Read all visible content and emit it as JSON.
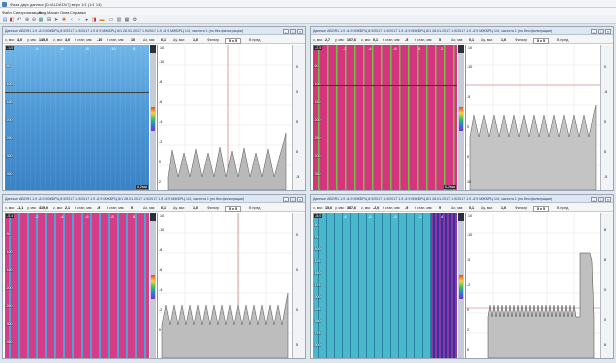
{
  "window": {
    "title": "Фаза двух данных  [D:/ALDATA/?]  верх 1/1 (1/1 14)"
  },
  "menu": [
    "Файл",
    "Синхронизация",
    "Вид",
    "Маски",
    "Окна",
    "Справка"
  ],
  "toolbar_icons": [
    "folder-icon",
    "save-icon",
    "undo-icon",
    "zoom-in-icon",
    "zoom-out-icon",
    "grid-icon",
    "ruler-icon",
    "cursor-icon",
    "marker-icon",
    "arrow-left-icon",
    "arrow-right-icon",
    "play-icon",
    "stop-icon",
    "palette-icon",
    "layout-1-icon",
    "layout-2-icon",
    "layout-4-icon",
    "settings-icon"
  ],
  "panels": [
    {
      "id": "tl",
      "title": "Данные ABOR1 1.9 -8-9 МЖБРЦ 8.9/2017 1.9/2017 1.9 8 9 МЖБРЦ 8/1 28.01.2017 1.9/2017 1.9 -8 9 МЖБРЦ 1/4, частота 1 (по без фильтрации)",
      "params": {
        "x_label": "x, мм:",
        "x": "4,0",
        "y_label": "y, мм:",
        "y": "145,0",
        "z_label": "z, мм:",
        "z": "4,0",
        "amp_label": "t стан, мм:",
        "amp": "-10",
        "tamp_label": "t стан, мм:",
        "tamp": "10",
        "dx_label": "Δx, мм:",
        "dx": "0,1",
        "dy_label": "Δy, мм:",
        "dy": "1,0",
        "filter_label": "Фильтр",
        "filter": "5 х 5",
        "sq_label": "В пред"
      },
      "image_labels": [
        "50",
        "100",
        "150",
        "200",
        "250",
        "300",
        "350",
        "400"
      ],
      "plot_y_labels": [
        "10",
        "-10",
        "-8",
        "-6",
        "-4",
        "-2",
        "0",
        "2"
      ],
      "right_labels": [
        "0",
        "0",
        "5",
        "5",
        "-5"
      ],
      "corner_tl": "-1,5",
      "corner_br": "6,2мм",
      "top_marks": [
        "-4",
        "-6",
        "-8",
        "-10",
        "8"
      ]
    },
    {
      "id": "tr",
      "title": "Данные ABOR1 1.9 -8-9 МЖБРЦ 8.9/2017 1.9/2017 1.9 -8 9 МЖБРЦ 8/1 28.01.2017 1.9/2017 1.9 -8 9 МЖБРЦ 1/4, частота 1 (по без фильтрации)",
      "params": {
        "x_label": "x, мм:",
        "x": "2,7",
        "y_label": "y, мм:",
        "y": "107,6",
        "z_label": "z, мм:",
        "z": "0,1",
        "amp_label": "t стан, мм:",
        "amp": "-5",
        "tamp_label": "t стан, мм:",
        "tamp": "5",
        "dx_label": "Δx, мм:",
        "dx": "0,1",
        "dy_label": "Δy, мм:",
        "dy": "1,0",
        "filter_label": "Фильтр",
        "filter": "5 х 5",
        "sq_label": "В пред"
      },
      "image_labels": [
        "50",
        "100",
        "150",
        "200",
        "250",
        "300",
        "350",
        "400"
      ],
      "plot_y_labels": [
        "10",
        "-10",
        "-5",
        "0",
        "5",
        "10"
      ],
      "right_labels": [
        "0",
        "-5",
        "5",
        "5",
        "-5"
      ],
      "corner_tl": "-2,5",
      "corner_br": "6,2мм",
      "top_marks": [
        "-2",
        "-4",
        "-6",
        "0",
        "2"
      ]
    },
    {
      "id": "bl",
      "title": "Данные ABOR1 1.9 -8-9 МЖБРЦ 8.9/2017 1.9/2017 1.9 -8 9 МЖБРЦ 8/1 28.01.2017 1.9/2017 1.9 -8 9 МЖБРЦ 1/4, частота 1 (по без фильтрации)",
      "params": {
        "x_label": "x, мм:",
        "x": "-1,1",
        "y_label": "y, мм:",
        "y": "419,0",
        "z_label": "z, мм:",
        "z": "2,1",
        "amp_label": "t стан, мм:",
        "amp": "-9",
        "tamp_label": "t стан, мм:",
        "tamp": "9",
        "dx_label": "Δx, мм:",
        "dx": "0,1",
        "dy_label": "Δy, мм:",
        "dy": "1,0",
        "filter_label": "Фильтр",
        "filter": "5 х 5",
        "sq_label": "В пред"
      },
      "image_labels": [
        "50",
        "100",
        "150",
        "200",
        "250",
        "300",
        "350"
      ],
      "plot_y_labels": [
        "10",
        "-10",
        "-8",
        "-6",
        "-4",
        "-2",
        "0"
      ],
      "right_labels": [
        "0",
        "0",
        "0",
        "5"
      ],
      "corner_tl": "-5,4",
      "corner_br": "",
      "top_marks": [
        "-2",
        "-4",
        "-6",
        "-8",
        "8"
      ]
    },
    {
      "id": "br",
      "title": "Данные ABOR1 1.9 -8-9 МЖБРЦ 8.9/2017 1.9/2017 1.9 -8 9 МЖБРЦ 8/1 28.01.2017 1.9/2017 1.9 -8 9 МЖБРЦ 1/4, частота 1 (по без фильтрации)",
      "params": {
        "x_label": "x, мм:",
        "x": "15,6",
        "y_label": "y, мм:",
        "y": "387,6",
        "z_label": "z, мм:",
        "z": "-2,0",
        "amp_label": "t стан, мм:",
        "amp": "-9",
        "tamp_label": "t стан, мм:",
        "tamp": "9",
        "dx_label": "Δx, мм:",
        "dx": "0,1",
        "dy_label": "Δy, мм:",
        "dy": "1,0",
        "filter_label": "Фильтр",
        "filter": "5 х 5",
        "sq_label": "В пред"
      },
      "image_labels": [
        "50",
        "75",
        "100",
        "125",
        "150",
        "175",
        "200",
        "225",
        "250",
        "275",
        "300"
      ],
      "plot_y_labels": [
        "10",
        "-10",
        "-5",
        "-2",
        "0",
        "2",
        "5"
      ],
      "right_labels": [
        "8",
        "8",
        "0",
        "0",
        "8"
      ],
      "corner_tl": "-8,0",
      "corner_br": "",
      "top_marks": [
        "-4",
        "-6",
        "-8",
        "-2",
        "4"
      ]
    }
  ],
  "colors": {
    "accent": "#4a7fc0",
    "panel_border": "#9aa6b4"
  }
}
